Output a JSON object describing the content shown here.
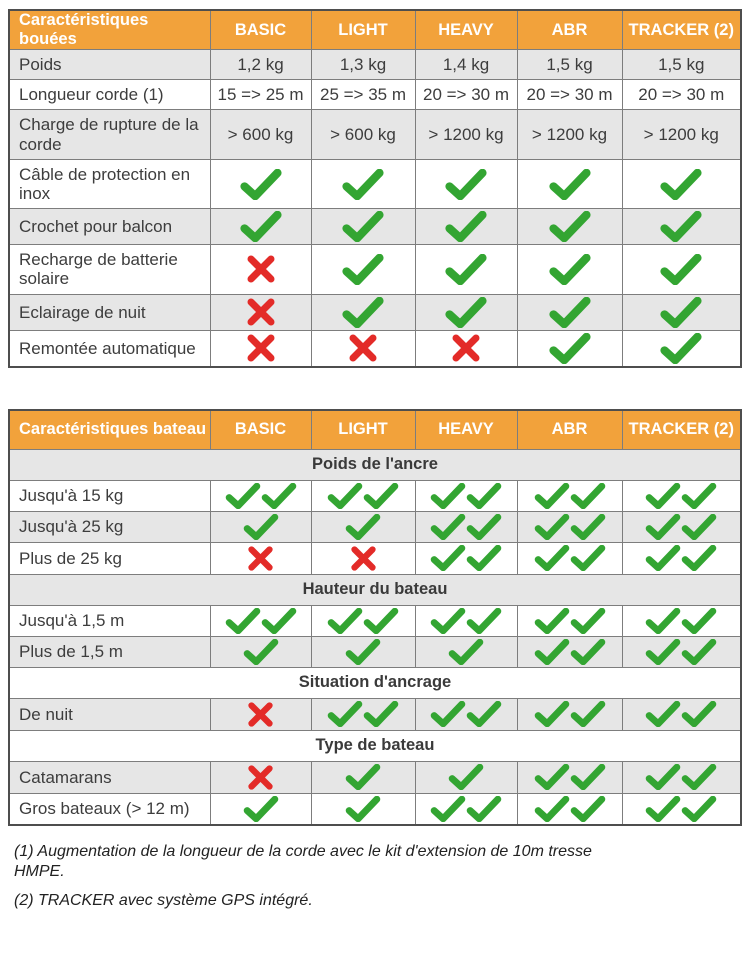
{
  "palette": {
    "header_orange": "#f2a23b",
    "check_green": "#33a532",
    "cross_red": "#e32b28",
    "row_gray": "#e6e6e6",
    "border_gray": "#7d7d7d"
  },
  "tables": [
    {
      "name": "buoys-comparison",
      "header": [
        "Caractéristiques bouées",
        "BASIC",
        "LIGHT",
        "HEAVY",
        "ABR",
        "TRACKER (2)"
      ],
      "rows": [
        {
          "label": "Poids",
          "values": [
            "1,2 kg",
            "1,3 kg",
            "1,4 kg",
            "1,5 kg",
            "1,5 kg"
          ]
        },
        {
          "label": "Longueur corde (1)",
          "values": [
            "15 => 25 m",
            "25 => 35 m",
            "20 => 30 m",
            "20 => 30 m",
            "20 => 30 m"
          ]
        },
        {
          "label": "Charge de rupture de la corde",
          "values": [
            "> 600 kg",
            "> 600 kg",
            "> 1200 kg",
            "> 1200 kg",
            "> 1200 kg"
          ]
        },
        {
          "label": "Câble de protection en inox",
          "values": [
            "check",
            "check",
            "check",
            "check",
            "check"
          ]
        },
        {
          "label": "Crochet pour balcon",
          "values": [
            "check",
            "check",
            "check",
            "check",
            "check"
          ]
        },
        {
          "label": "Recharge de batterie solaire",
          "values": [
            "cross",
            "check",
            "check",
            "check",
            "check"
          ]
        },
        {
          "label": "Eclairage de nuit",
          "values": [
            "cross",
            "check",
            "check",
            "check",
            "check"
          ]
        },
        {
          "label": "Remontée automatique",
          "values": [
            "cross",
            "cross",
            "cross",
            "check",
            "check"
          ]
        }
      ]
    },
    {
      "name": "boats-comparison",
      "header": [
        "Caractéristiques bateau",
        "BASIC",
        "LIGHT",
        "HEAVY",
        "ABR",
        "TRACKER (2)"
      ],
      "rows": [
        {
          "section": "Poids de l'ancre"
        },
        {
          "label": "Jusqu'à 15 kg",
          "values": [
            "check2",
            "check2",
            "check2",
            "check2",
            "check2"
          ]
        },
        {
          "label": "Jusqu'à 25 kg",
          "values": [
            "check",
            "check",
            "check2",
            "check2",
            "check2"
          ]
        },
        {
          "label": "Plus de 25 kg",
          "values": [
            "cross",
            "cross",
            "check2",
            "check2",
            "check2"
          ]
        },
        {
          "section": "Hauteur du bateau"
        },
        {
          "label": "Jusqu'à 1,5 m",
          "values": [
            "check2",
            "check2",
            "check2",
            "check2",
            "check2"
          ]
        },
        {
          "label": "Plus de 1,5 m",
          "values": [
            "check",
            "check",
            "check",
            "check2",
            "check2"
          ]
        },
        {
          "section": "Situation d'ancrage"
        },
        {
          "label": "De nuit",
          "values": [
            "cross",
            "check2",
            "check2",
            "check2",
            "check2"
          ]
        },
        {
          "section": "Type de bateau"
        },
        {
          "label": "Catamarans",
          "values": [
            "cross",
            "check",
            "check",
            "check2",
            "check2"
          ]
        },
        {
          "label": "Gros bateaux (> 12 m)",
          "values": [
            "check",
            "check",
            "check2",
            "check2",
            "check2"
          ]
        }
      ]
    }
  ],
  "footnotes": [
    "(1) Augmentation de la longueur de la corde avec le kit d'extension de 10m tresse HMPE.",
    "(2) TRACKER avec système GPS intégré."
  ]
}
